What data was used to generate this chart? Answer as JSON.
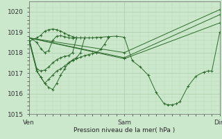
{
  "xlabel": "Pression niveau de la mer( hPa )",
  "bg_color": "#cce8cc",
  "grid_color": "#aaccaa",
  "line_color": "#2d6a2d",
  "ylim": [
    1015,
    1020.5
  ],
  "yticks": [
    1015,
    1016,
    1017,
    1018,
    1019,
    1020
  ],
  "xticks_pos": [
    0,
    48,
    96
  ],
  "xticks_labels": [
    "Ven",
    "Sam",
    "Dim"
  ],
  "series": [
    [
      [
        0,
        1018.75
      ],
      [
        4,
        1018.5
      ],
      [
        6,
        1018.2
      ],
      [
        8,
        1018.0
      ],
      [
        10,
        1018.1
      ],
      [
        12,
        1018.6
      ],
      [
        14,
        1018.8
      ],
      [
        16,
        1018.82
      ],
      [
        18,
        1018.78
      ],
      [
        20,
        1018.72
      ],
      [
        22,
        1018.7
      ],
      [
        24,
        1018.72
      ],
      [
        26,
        1018.72
      ],
      [
        28,
        1018.72
      ],
      [
        30,
        1018.72
      ],
      [
        32,
        1018.72
      ],
      [
        34,
        1018.74
      ],
      [
        36,
        1018.75
      ],
      [
        40,
        1018.78
      ],
      [
        44,
        1018.8
      ],
      [
        48,
        1018.75
      ],
      [
        52,
        1017.6
      ],
      [
        56,
        1017.3
      ],
      [
        60,
        1016.9
      ],
      [
        64,
        1016.05
      ],
      [
        68,
        1015.5
      ],
      [
        70,
        1015.45
      ],
      [
        72,
        1015.45
      ],
      [
        74,
        1015.5
      ],
      [
        76,
        1015.6
      ],
      [
        80,
        1016.35
      ],
      [
        84,
        1016.85
      ],
      [
        88,
        1017.05
      ],
      [
        90,
        1017.1
      ],
      [
        92,
        1017.1
      ],
      [
        96,
        1019.0
      ]
    ],
    [
      [
        0,
        1018.72
      ],
      [
        48,
        1017.7
      ],
      [
        96,
        1019.45
      ]
    ],
    [
      [
        0,
        1018.72
      ],
      [
        48,
        1017.75
      ],
      [
        96,
        1019.85
      ]
    ],
    [
      [
        0,
        1018.72
      ],
      [
        48,
        1018.0
      ],
      [
        96,
        1020.1
      ]
    ],
    [
      [
        0,
        1018.55
      ],
      [
        4,
        1018.72
      ],
      [
        6,
        1018.85
      ],
      [
        8,
        1019.05
      ],
      [
        10,
        1019.12
      ],
      [
        12,
        1019.15
      ],
      [
        14,
        1019.12
      ],
      [
        16,
        1019.05
      ],
      [
        18,
        1018.95
      ],
      [
        20,
        1018.85
      ],
      [
        22,
        1018.78
      ],
      [
        24,
        1018.72
      ],
      [
        26,
        1018.72
      ],
      [
        28,
        1018.72
      ]
    ],
    [
      [
        0,
        1018.72
      ],
      [
        4,
        1017.2
      ],
      [
        6,
        1017.1
      ],
      [
        8,
        1017.15
      ],
      [
        10,
        1017.3
      ],
      [
        12,
        1017.5
      ],
      [
        14,
        1017.65
      ],
      [
        16,
        1017.75
      ],
      [
        18,
        1017.82
      ],
      [
        20,
        1017.85
      ],
      [
        22,
        1018.0
      ],
      [
        24,
        1018.72
      ]
    ],
    [
      [
        0,
        1018.6
      ],
      [
        4,
        1017.1
      ],
      [
        6,
        1016.8
      ],
      [
        8,
        1016.5
      ],
      [
        10,
        1016.3
      ],
      [
        12,
        1016.2
      ],
      [
        14,
        1016.5
      ],
      [
        16,
        1016.9
      ],
      [
        18,
        1017.2
      ],
      [
        20,
        1017.5
      ],
      [
        22,
        1017.65
      ],
      [
        24,
        1017.75
      ],
      [
        26,
        1018.0
      ],
      [
        28,
        1018.72
      ]
    ],
    [
      [
        0,
        1018.72
      ],
      [
        4,
        1017.1
      ],
      [
        6,
        1016.8
      ],
      [
        8,
        1016.5
      ],
      [
        10,
        1016.7
      ],
      [
        12,
        1016.9
      ],
      [
        14,
        1017.1
      ],
      [
        16,
        1017.2
      ],
      [
        18,
        1017.35
      ],
      [
        20,
        1017.5
      ],
      [
        22,
        1017.6
      ],
      [
        24,
        1017.7
      ],
      [
        26,
        1017.78
      ],
      [
        28,
        1017.85
      ],
      [
        30,
        1017.9
      ],
      [
        32,
        1017.95
      ],
      [
        34,
        1018.0
      ],
      [
        36,
        1018.15
      ],
      [
        38,
        1018.4
      ],
      [
        40,
        1018.72
      ]
    ]
  ]
}
